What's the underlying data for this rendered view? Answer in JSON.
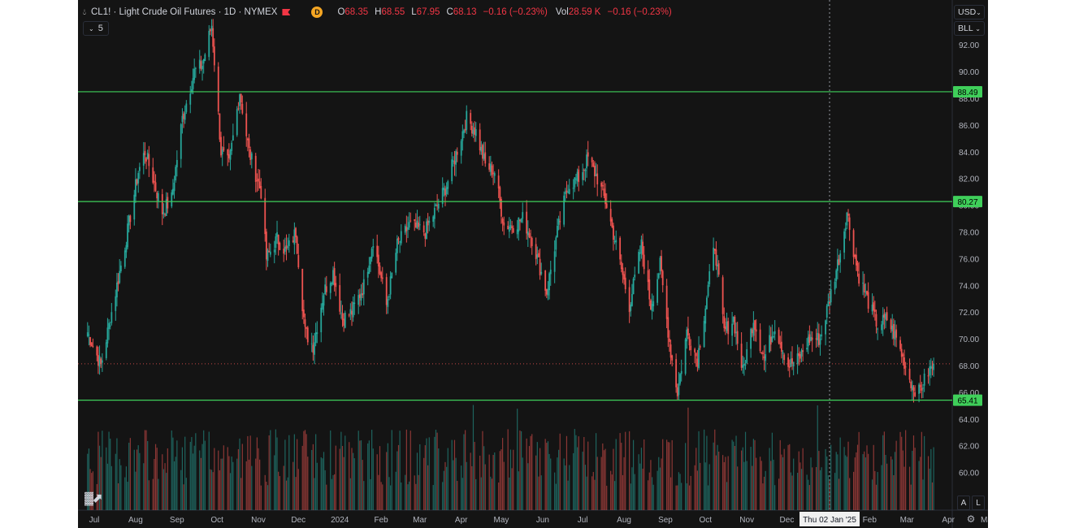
{
  "header": {
    "symbol_title": "CL1! · Light Crude Oil Futures · 1D · NYMEX",
    "badge": "D",
    "open_label": "O",
    "open": "68.35",
    "high_label": "H",
    "high": "68.55",
    "low_label": "L",
    "low": "67.95",
    "close_label": "C",
    "close": "68.13",
    "change": "−0.16 (−0.23%)",
    "vol_label": "Vol",
    "vol": "28.59 K",
    "vol_change": "−0.16 (−0.23%)"
  },
  "indicator_toggle": {
    "count": "5"
  },
  "currency_button": "USD",
  "unit_button": "BLL",
  "crosshair_date": "Thu 02 Jan '25",
  "corner_buttons": {
    "a": "A",
    "l": "L"
  },
  "icons": {
    "logo": "tradingview-logo-icon",
    "settings": "gear-icon",
    "chevron": "chevron-down-icon"
  },
  "colors": {
    "up": "#26a69a",
    "down": "#ef5350",
    "level_line": "#3fcf5a",
    "price_line": "#ef5350"
  },
  "chart_data": {
    "type": "candlestick",
    "x_tick_labels": [
      "Jul",
      "Aug",
      "Sep",
      "Oct",
      "Nov",
      "Dec",
      "2024",
      "Feb",
      "Mar",
      "Apr",
      "May",
      "Jun",
      "Jul",
      "Aug",
      "Sep",
      "Oct",
      "Nov",
      "Dec",
      "Feb",
      "Mar",
      "Apr",
      "May"
    ],
    "y_tick_labels": [
      "60.00",
      "62.00",
      "64.00",
      "66.00",
      "68.00",
      "70.00",
      "72.00",
      "74.00",
      "76.00",
      "78.00",
      "80.00",
      "82.00",
      "84.00",
      "86.00",
      "88.00",
      "90.00",
      "92.00"
    ],
    "y_range": [
      57.7,
      94.3
    ],
    "horizontal_levels": [
      88.49,
      80.27,
      65.41
    ],
    "last_price": 68.13,
    "grid": false,
    "close_path": [
      [
        "2023-06-26",
        70.5
      ],
      [
        "2023-07-06",
        68.0
      ],
      [
        "2023-07-14",
        72.0
      ],
      [
        "2023-07-24",
        77.0
      ],
      [
        "2023-08-03",
        82.5
      ],
      [
        "2023-08-08",
        84.0
      ],
      [
        "2023-08-14",
        82.0
      ],
      [
        "2023-08-21",
        79.5
      ],
      [
        "2023-08-28",
        80.5
      ],
      [
        "2023-09-05",
        86.5
      ],
      [
        "2023-09-14",
        90.0
      ],
      [
        "2023-09-20",
        90.5
      ],
      [
        "2023-09-27",
        93.5
      ],
      [
        "2023-10-04",
        84.0
      ],
      [
        "2023-10-10",
        83.0
      ],
      [
        "2023-10-18",
        88.5
      ],
      [
        "2023-10-25",
        84.0
      ],
      [
        "2023-11-03",
        81.0
      ],
      [
        "2023-11-07",
        76.0
      ],
      [
        "2023-11-15",
        77.5
      ],
      [
        "2023-11-22",
        76.5
      ],
      [
        "2023-11-29",
        78.0
      ],
      [
        "2023-12-06",
        70.5
      ],
      [
        "2023-12-12",
        69.5
      ],
      [
        "2023-12-20",
        73.5
      ],
      [
        "2023-12-27",
        75.0
      ],
      [
        "2024-01-03",
        71.5
      ],
      [
        "2024-01-10",
        72.0
      ],
      [
        "2024-01-19",
        74.0
      ],
      [
        "2024-01-26",
        77.5
      ],
      [
        "2024-02-05",
        72.5
      ],
      [
        "2024-02-13",
        77.0
      ],
      [
        "2024-02-22",
        78.5
      ],
      [
        "2024-03-05",
        78.0
      ],
      [
        "2024-03-12",
        79.5
      ],
      [
        "2024-03-21",
        81.5
      ],
      [
        "2024-04-05",
        86.5
      ],
      [
        "2024-04-12",
        85.5
      ],
      [
        "2024-04-19",
        83.0
      ],
      [
        "2024-04-26",
        82.5
      ],
      [
        "2024-05-03",
        78.5
      ],
      [
        "2024-05-10",
        78.5
      ],
      [
        "2024-05-17",
        79.0
      ],
      [
        "2024-05-24",
        77.5
      ],
      [
        "2024-06-04",
        73.5
      ],
      [
        "2024-06-12",
        78.0
      ],
      [
        "2024-06-20",
        81.5
      ],
      [
        "2024-06-28",
        82.0
      ],
      [
        "2024-07-05",
        83.5
      ],
      [
        "2024-07-12",
        82.0
      ],
      [
        "2024-07-19",
        80.0
      ],
      [
        "2024-07-26",
        77.0
      ],
      [
        "2024-08-05",
        72.5
      ],
      [
        "2024-08-14",
        77.0
      ],
      [
        "2024-08-21",
        72.5
      ],
      [
        "2024-08-28",
        75.5
      ],
      [
        "2024-09-05",
        69.0
      ],
      [
        "2024-09-10",
        66.0
      ],
      [
        "2024-09-17",
        70.5
      ],
      [
        "2024-09-25",
        68.5
      ],
      [
        "2024-10-04",
        74.5
      ],
      [
        "2024-10-08",
        77.0
      ],
      [
        "2024-10-15",
        70.5
      ],
      [
        "2024-10-22",
        71.5
      ],
      [
        "2024-10-29",
        67.5
      ],
      [
        "2024-11-06",
        71.5
      ],
      [
        "2024-11-14",
        68.5
      ],
      [
        "2024-11-22",
        71.0
      ],
      [
        "2024-12-02",
        68.0
      ],
      [
        "2024-12-10",
        68.5
      ],
      [
        "2024-12-18",
        70.0
      ],
      [
        "2024-12-26",
        70.0
      ],
      [
        "2025-01-02",
        73.0
      ],
      [
        "2025-01-10",
        76.5
      ],
      [
        "2025-01-15",
        79.5
      ],
      [
        "2025-01-23",
        75.0
      ],
      [
        "2025-01-30",
        73.0
      ],
      [
        "2025-02-07",
        71.0
      ],
      [
        "2025-02-14",
        71.5
      ],
      [
        "2025-02-21",
        70.0
      ],
      [
        "2025-03-05",
        66.5
      ],
      [
        "2025-03-10",
        66.0
      ],
      [
        "2025-03-17",
        67.5
      ],
      [
        "2025-03-21",
        68.13
      ]
    ]
  }
}
